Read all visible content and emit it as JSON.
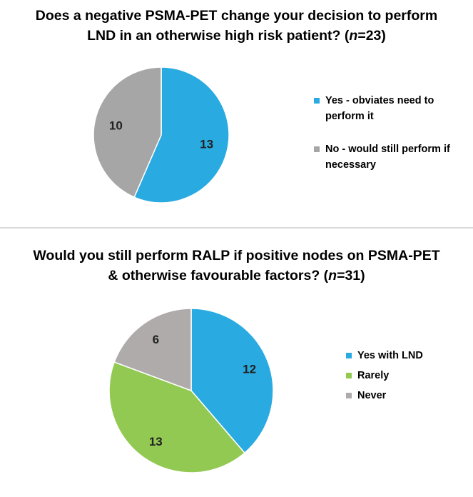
{
  "charts": [
    {
      "title_line1": "Does a negative PSMA-PET change your decision to perform",
      "title_line2_prefix": "LND in an otherwise high risk patient? (",
      "title_n_var": "n",
      "title_n_value": "=23)",
      "legend": [
        {
          "label": "Yes - obviates need to perform it",
          "color": "#29ABE2"
        },
        {
          "label": "No - would still perform if necessary",
          "color": "#A6A6A6"
        }
      ]
    },
    {
      "title_line1": "Would you still perform RALP if positive nodes on PSMA-PET",
      "title_line2_prefix": "& otherwise favourable factors? (",
      "title_n_var": "n",
      "title_n_value": "=31)",
      "legend": [
        {
          "label": "Yes with LND",
          "color": "#29ABE2"
        },
        {
          "label": "Rarely",
          "color": "#92C953"
        },
        {
          "label": "Never",
          "color": "#B0ABAB"
        }
      ]
    }
  ],
  "chart_data": [
    {
      "type": "pie",
      "title": "Does a negative PSMA-PET change your decision to perform LND in an otherwise high risk patient? (n=23)",
      "categories": [
        "Yes - obviates need to perform it",
        "No - would still perform if necessary"
      ],
      "values": [
        13,
        10
      ],
      "colors": [
        "#29ABE2",
        "#A6A6A6"
      ],
      "legend_position": "right"
    },
    {
      "type": "pie",
      "title": "Would you still perform RALP if positive nodes on PSMA-PET & otherwise favourable factors? (n=31)",
      "categories": [
        "Yes with LND",
        "Rarely",
        "Never"
      ],
      "values": [
        12,
        13,
        6
      ],
      "colors": [
        "#29ABE2",
        "#92C953",
        "#B0ABAB"
      ],
      "legend_position": "right"
    }
  ]
}
